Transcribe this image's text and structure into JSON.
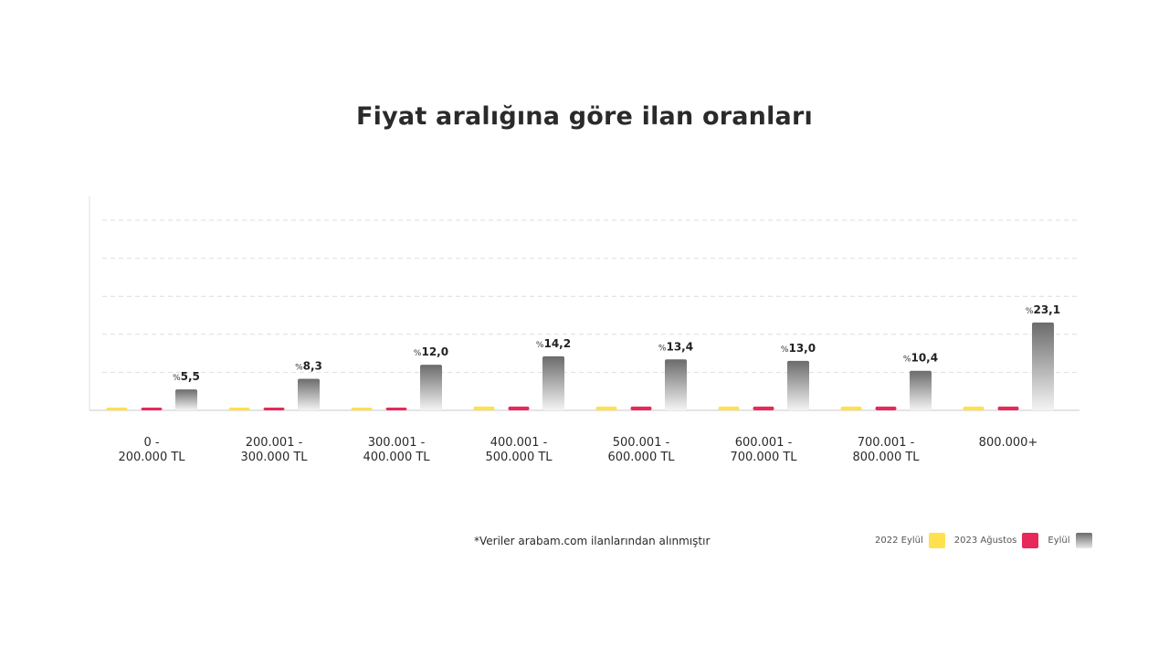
{
  "title": "Fiyat aralığına göre ilan oranları",
  "footnote": "*Veriler arabam.com ilanlarından alınmıştır",
  "colors": {
    "yellow": "#ffe14d",
    "red": "#e8285a",
    "gray_top": "#6b6b6b",
    "gray_bottom": "#f4f4f4"
  },
  "legend": [
    {
      "label": "2022 Eylül",
      "color": "#ffe14d"
    },
    {
      "label": "2023 Ağustos",
      "color": "#e8285a"
    },
    {
      "label": "Eylül",
      "color": "#8a8a8a"
    }
  ],
  "chart_data": {
    "type": "bar",
    "title": "Fiyat aralığına göre ilan oranları",
    "categories": [
      [
        "0 -",
        "200.000 TL"
      ],
      [
        "200.001 -",
        "300.000 TL"
      ],
      [
        "300.001 -",
        "400.000 TL"
      ],
      [
        "400.001 -",
        "500.000 TL"
      ],
      [
        "500.001 -",
        "600.000 TL"
      ],
      [
        "600.001 -",
        "700.000 TL"
      ],
      [
        "700.001 -",
        "800.000 TL"
      ],
      [
        "800.000+"
      ]
    ],
    "series": [
      {
        "name": "2022 Eylül",
        "values": [
          0.6,
          0.6,
          0.6,
          1.0,
          1.0,
          1.0,
          1.0,
          1.0
        ]
      },
      {
        "name": "2023 Ağustos",
        "values": [
          0.6,
          0.6,
          0.6,
          1.0,
          1.0,
          1.0,
          1.0,
          1.0
        ]
      },
      {
        "name": "Eylül",
        "values": [
          5.5,
          8.3,
          12.0,
          14.2,
          13.4,
          13.0,
          10.4,
          23.1
        ]
      }
    ],
    "labels": [
      "5,5",
      "8,3",
      "12,0",
      "14,2",
      "13,4",
      "13,0",
      "10,4",
      "23,1"
    ],
    "label_prefix": "%",
    "ylim": [
      0,
      50
    ],
    "gridlines": [
      10,
      20,
      30,
      40,
      50
    ],
    "grid": true,
    "legend_position": "bottom-right"
  }
}
